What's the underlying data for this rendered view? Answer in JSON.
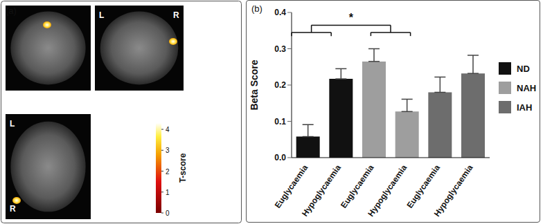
{
  "panel_a": {
    "label": "(a)",
    "views": [
      [],
      [
        "L",
        "R"
      ],
      [
        "L",
        "R"
      ]
    ],
    "colorbar": {
      "title": "T-score",
      "range": [
        0,
        4.3
      ],
      "ticks": [
        0,
        1,
        2,
        3,
        4
      ]
    }
  },
  "chart_data": {
    "type": "bar",
    "title": "(b)",
    "y_label": "Beta Score",
    "categories": [
      "Euglycaemia",
      "Hypoglycaemia",
      "Euglycaemia",
      "Hypoglycaemia",
      "Euglycaemia",
      "Hypoglycaemia"
    ],
    "series": [
      {
        "name": "ND",
        "color": "#111111",
        "values": [
          0.058,
          0.217,
          null,
          null,
          null,
          null
        ],
        "errors": [
          0.033,
          0.028,
          null,
          null,
          null,
          null
        ]
      },
      {
        "name": "NAH",
        "color": "#9e9e9e",
        "values": [
          null,
          null,
          0.265,
          0.127,
          null,
          null
        ],
        "errors": [
          null,
          null,
          0.035,
          0.034,
          null,
          null
        ]
      },
      {
        "name": "IAH",
        "color": "#6d6d6d",
        "values": [
          null,
          null,
          null,
          null,
          0.18,
          0.232
        ],
        "errors": [
          null,
          null,
          null,
          null,
          0.042,
          0.05
        ]
      }
    ],
    "ylim": [
      0,
      0.4
    ],
    "yticks": [
      {
        "value": 0,
        "label": "0.0"
      },
      0.1,
      0.2,
      0.3,
      0.4
    ],
    "grid": false,
    "legend": "right",
    "annotations": [
      {
        "text": "*",
        "between": [
          "ND",
          "NAH"
        ]
      }
    ]
  }
}
